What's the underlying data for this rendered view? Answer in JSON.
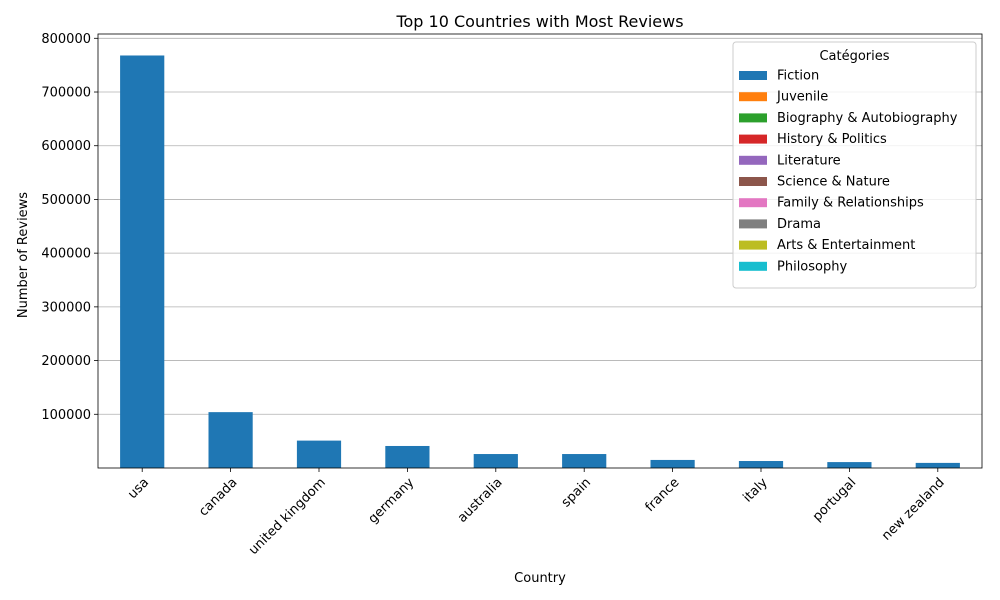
{
  "chart_data": {
    "type": "bar",
    "stacked": true,
    "title": "Top 10 Countries with Most Reviews",
    "xlabel": "Country",
    "ylabel": "Number of Reviews",
    "categories": [
      "usa",
      "canada",
      "united kingdom",
      "germany",
      "australia",
      "spain",
      "france",
      "italy",
      "portugal",
      "new zealand"
    ],
    "ylim": [
      0,
      808000
    ],
    "yticks": [
      100000,
      200000,
      300000,
      400000,
      500000,
      600000,
      700000,
      800000
    ],
    "grid": "y",
    "legend": {
      "title": "Catégories",
      "placement": "top-right"
    },
    "series": [
      {
        "name": "Fiction",
        "color": "#1f77b4",
        "values": [
          768000,
          104000,
          51000,
          41000,
          26000,
          26000,
          15000,
          13000,
          11000,
          9500
        ]
      },
      {
        "name": "Juvenile",
        "color": "#ff7f0e",
        "values": [
          0,
          0,
          0,
          0,
          0,
          0,
          0,
          0,
          0,
          0
        ]
      },
      {
        "name": "Biography & Autobiography",
        "color": "#2ca02c",
        "values": [
          0,
          0,
          0,
          0,
          0,
          0,
          0,
          0,
          0,
          0
        ]
      },
      {
        "name": "History & Politics",
        "color": "#d62728",
        "values": [
          0,
          0,
          0,
          0,
          0,
          0,
          0,
          0,
          0,
          0
        ]
      },
      {
        "name": "Literature",
        "color": "#9467bd",
        "values": [
          0,
          0,
          0,
          0,
          0,
          0,
          0,
          0,
          0,
          0
        ]
      },
      {
        "name": "Science & Nature",
        "color": "#8c564b",
        "values": [
          0,
          0,
          0,
          0,
          0,
          0,
          0,
          0,
          0,
          0
        ]
      },
      {
        "name": "Family & Relationships",
        "color": "#e377c2",
        "values": [
          0,
          0,
          0,
          0,
          0,
          0,
          0,
          0,
          0,
          0
        ]
      },
      {
        "name": "Drama",
        "color": "#7f7f7f",
        "values": [
          0,
          0,
          0,
          0,
          0,
          0,
          0,
          0,
          0,
          0
        ]
      },
      {
        "name": "Arts & Entertainment",
        "color": "#bcbd22",
        "values": [
          0,
          0,
          0,
          0,
          0,
          0,
          0,
          0,
          0,
          0
        ]
      },
      {
        "name": "Philosophy",
        "color": "#17becf",
        "values": [
          0,
          0,
          0,
          0,
          0,
          0,
          0,
          0,
          0,
          0
        ]
      }
    ]
  }
}
